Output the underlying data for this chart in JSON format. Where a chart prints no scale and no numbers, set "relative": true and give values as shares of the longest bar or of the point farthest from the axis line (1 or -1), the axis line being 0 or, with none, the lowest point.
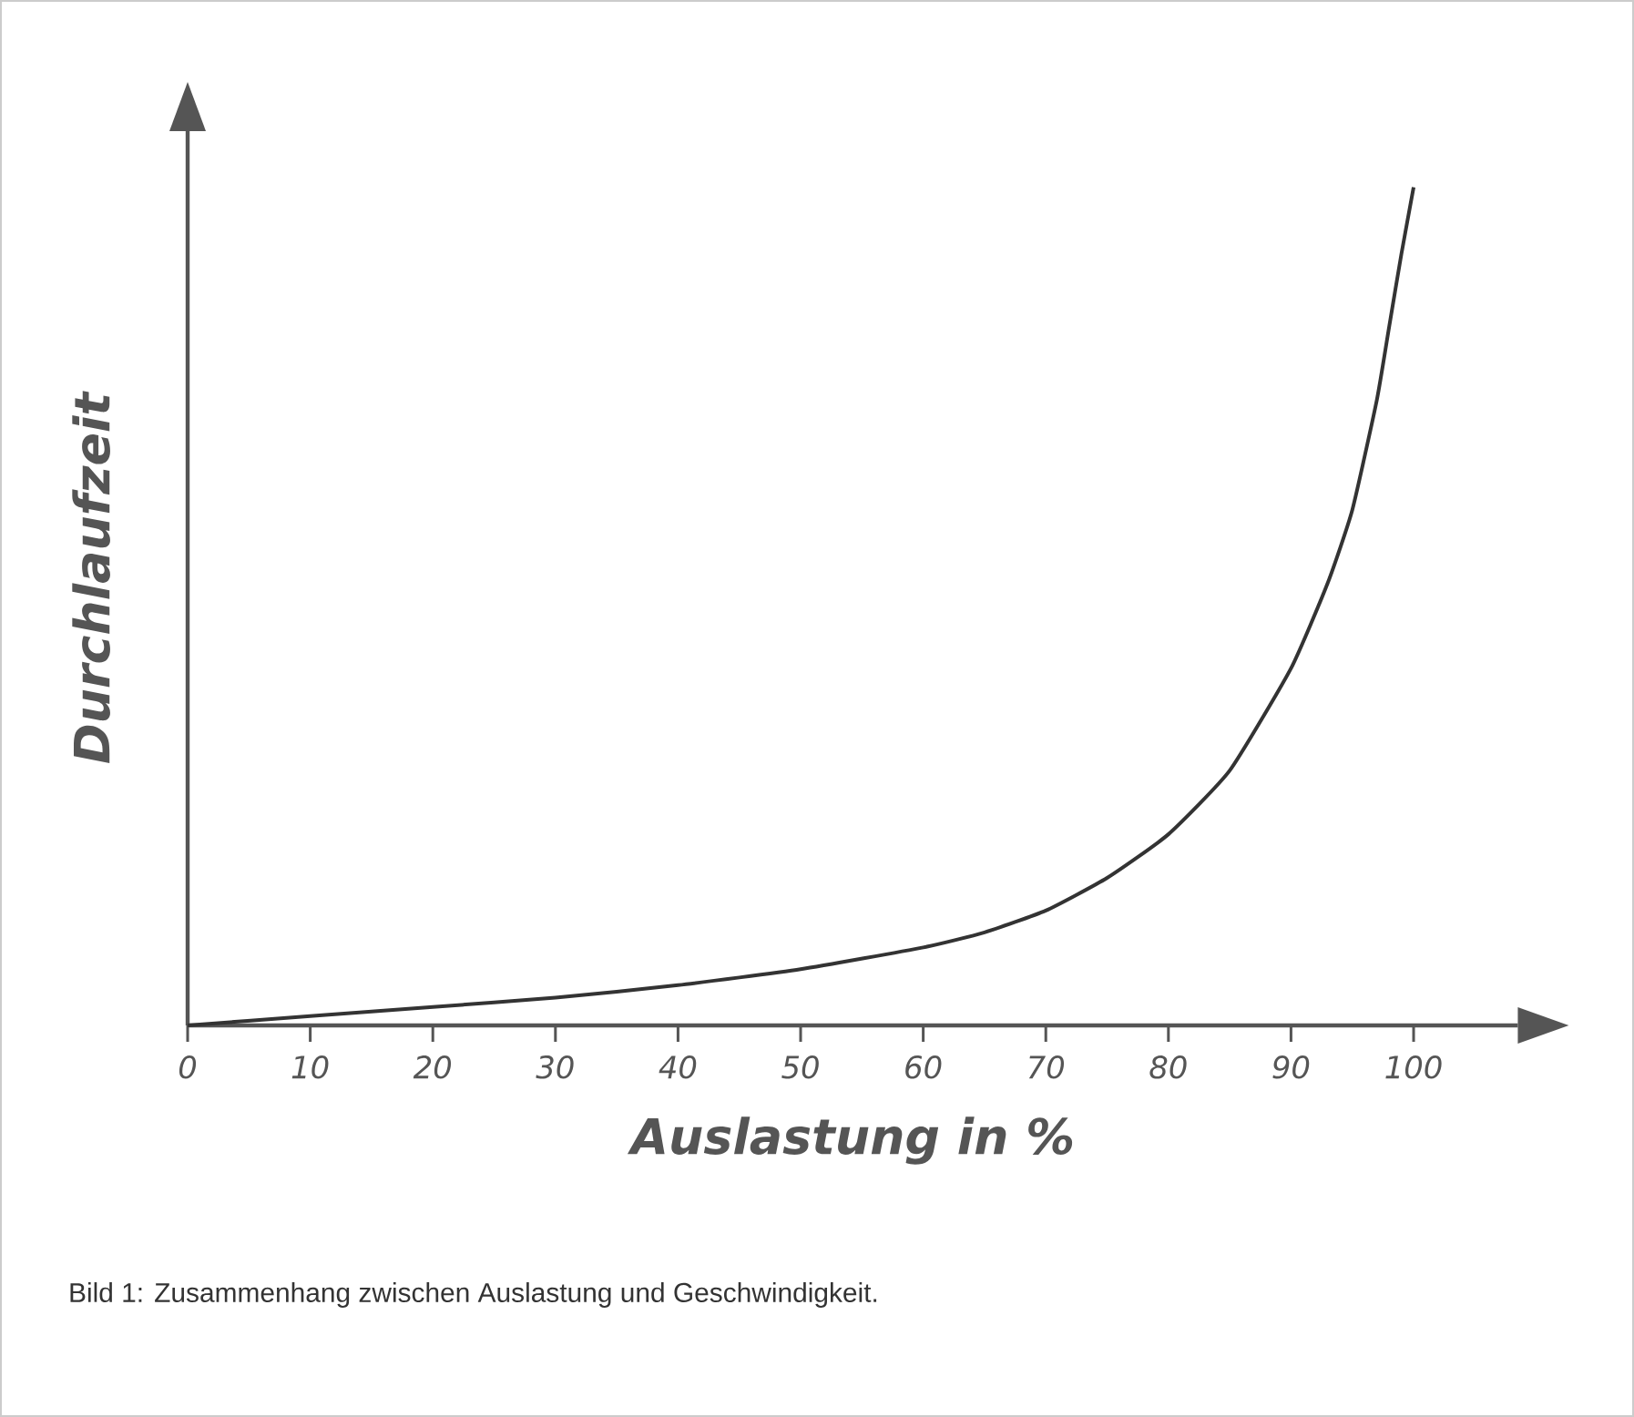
{
  "chart_data": {
    "type": "line",
    "xlabel": "Auslastung in %",
    "ylabel": "Durchlaufzeit",
    "annotations": [
      "Bild 1: Zusammenhang zwischen Auslastung und Geschwindigkeit."
    ],
    "relative": true,
    "color": "#333333",
    "xlim": [
      0,
      108.5
    ],
    "xticks": [
      0,
      10,
      20,
      30,
      40,
      50,
      60,
      70,
      80,
      90,
      100
    ],
    "x": [
      0,
      10,
      20,
      30,
      40,
      50,
      60,
      65,
      70,
      75,
      80,
      85,
      90,
      93,
      95,
      97,
      98,
      99,
      100
    ],
    "values": [
      0,
      0.011,
      0.022,
      0.033,
      0.048,
      0.067,
      0.093,
      0.111,
      0.137,
      0.176,
      0.228,
      0.304,
      0.426,
      0.528,
      0.615,
      0.746,
      0.833,
      0.92,
      1
    ]
  }
}
